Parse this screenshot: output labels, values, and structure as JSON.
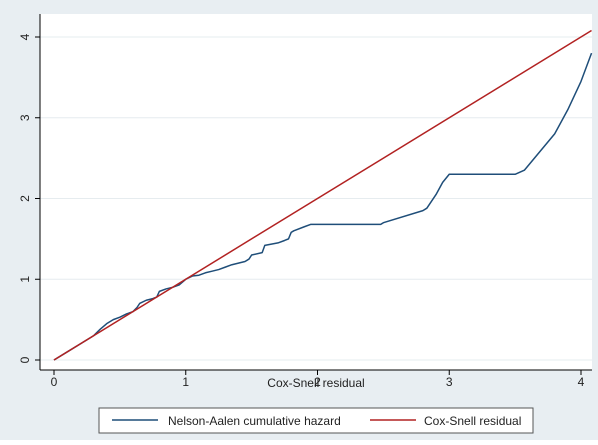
{
  "colors": {
    "outer_bg": "#e8eef2",
    "plot_bg": "#ffffff",
    "grid": "#e6ecef",
    "axis": "#000000",
    "series_blue": "#1f4e79",
    "series_red": "#b22222"
  },
  "chart_data": {
    "type": "line",
    "title": "",
    "xlabel": "Cox-Snell residual",
    "ylabel": "",
    "xlim": [
      0,
      4.1
    ],
    "ylim": [
      0,
      4.1
    ],
    "x_ticks": [
      0,
      1,
      2,
      3,
      4
    ],
    "y_ticks": [
      0,
      1,
      2,
      3,
      4
    ],
    "x_tick_labels": [
      "0",
      "1",
      "2",
      "3",
      "4"
    ],
    "y_tick_labels": [
      "0",
      "1",
      "2",
      "3",
      "4"
    ],
    "grid": true,
    "legend_position": "bottom",
    "series": [
      {
        "name": "Nelson-Aalen cumulative hazard",
        "color": "#1f4e79",
        "x": [
          0,
          0.1,
          0.2,
          0.3,
          0.35,
          0.4,
          0.45,
          0.5,
          0.55,
          0.6,
          0.63,
          0.65,
          0.7,
          0.75,
          0.78,
          0.8,
          0.85,
          0.9,
          0.95,
          1.0,
          1.05,
          1.1,
          1.15,
          1.2,
          1.25,
          1.3,
          1.35,
          1.4,
          1.45,
          1.48,
          1.5,
          1.58,
          1.6,
          1.7,
          1.75,
          1.78,
          1.8,
          1.82,
          1.9,
          1.95,
          2.0,
          2.2,
          2.48,
          2.5,
          2.8,
          2.83,
          2.9,
          2.95,
          3.0,
          3.5,
          3.57,
          3.8,
          3.9,
          4.0,
          4.08
        ],
        "y": [
          0,
          0.1,
          0.2,
          0.3,
          0.38,
          0.45,
          0.5,
          0.53,
          0.57,
          0.6,
          0.65,
          0.7,
          0.74,
          0.76,
          0.78,
          0.85,
          0.88,
          0.9,
          0.93,
          1.0,
          1.04,
          1.05,
          1.08,
          1.1,
          1.12,
          1.15,
          1.18,
          1.2,
          1.22,
          1.25,
          1.3,
          1.33,
          1.42,
          1.45,
          1.48,
          1.5,
          1.58,
          1.6,
          1.65,
          1.68,
          1.68,
          1.68,
          1.68,
          1.7,
          1.85,
          1.88,
          2.05,
          2.2,
          2.3,
          2.3,
          2.35,
          2.8,
          3.1,
          3.45,
          3.8
        ]
      },
      {
        "name": "Cox-Snell residual",
        "color": "#b22222",
        "x": [
          0,
          4.08
        ],
        "y": [
          0,
          4.08
        ]
      }
    ]
  }
}
